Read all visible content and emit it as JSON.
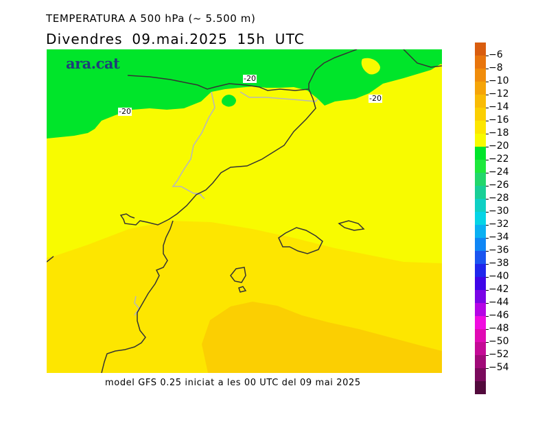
{
  "header": {
    "title": "TEMPERATURA A 500 hPa (~ 5.500 m)",
    "subtitle": "Divendres  09.mai.2025  15h UTC"
  },
  "brand": {
    "logo_text": "ara.cat"
  },
  "footer": {
    "text": "model GFS 0.25 iniciat a les 00 UTC del 09 mai 2025"
  },
  "contour_labels": [
    "-20",
    "-20",
    "-20"
  ],
  "legend": {
    "colors": [
      "#d95d0f",
      "#e8750d",
      "#f08c0b",
      "#f5a408",
      "#f9bb05",
      "#fbcf02",
      "#fde600",
      "#f8fb00",
      "#00e52a",
      "#1ee83c",
      "#22d76b",
      "#19cf96",
      "#0fd0c4",
      "#05d4e6",
      "#0ab0f2",
      "#0f86f5",
      "#1a55f0",
      "#1f26ec",
      "#3f05e8",
      "#7a05e6",
      "#b405e5",
      "#f00ce0",
      "#e00ab4",
      "#c40a96",
      "#a00a78",
      "#7a0a5c",
      "#520a3c"
    ],
    "labels": [
      "-6",
      "-8",
      "-10",
      "-12",
      "-14",
      "-16",
      "-18",
      "-20",
      "-22",
      "-24",
      "-26",
      "-28",
      "-30",
      "-32",
      "-34",
      "-36",
      "-38",
      "-40",
      "-42",
      "-44",
      "-46",
      "-48",
      "-50",
      "-52",
      "-54"
    ]
  },
  "map_colors": {
    "green_band": "#00e52a",
    "yellow_band": "#f8fb00",
    "gold_band": "#fde600",
    "orange_band": "#fbcf02",
    "coast_line": "#333333",
    "border_line": "#b8b8b8"
  }
}
